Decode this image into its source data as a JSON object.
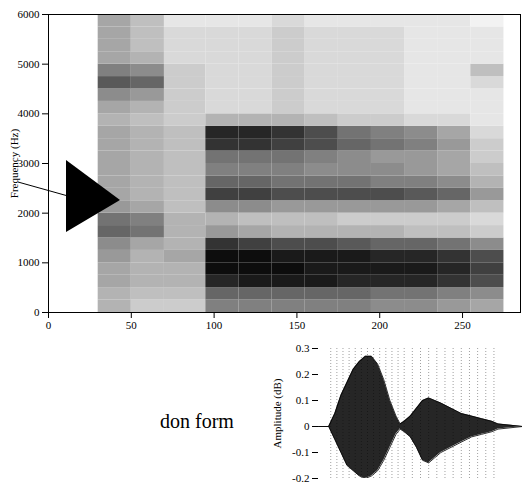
{
  "chart_data": [
    {
      "type": "heatmap",
      "y_label": "Frequency (Hz)",
      "xlim": [
        0,
        285
      ],
      "xticks": [
        0,
        50,
        100,
        150,
        200,
        250
      ],
      "ylim": [
        0,
        6000
      ],
      "yticks": [
        0,
        1000,
        2000,
        3000,
        4000,
        5000,
        6000
      ],
      "time_bins": [
        30,
        50,
        70,
        95,
        115,
        135,
        155,
        175,
        195,
        215,
        235,
        255,
        275
      ],
      "frequency_bins": [
        0,
        250,
        500,
        750,
        1000,
        1250,
        1500,
        1750,
        2000,
        2250,
        2500,
        2750,
        3000,
        3250,
        3500,
        3750,
        4000,
        4250,
        4500,
        4750,
        5000,
        5250,
        5500,
        5750,
        6000
      ],
      "intensity_range": [
        0,
        1
      ],
      "intensity": [
        [
          0.3,
          0.2,
          0.2,
          0.5,
          0.5,
          0.5,
          0.5,
          0.5,
          0.45,
          0.45,
          0.4,
          0.35
        ],
        [
          0.3,
          0.25,
          0.25,
          0.6,
          0.6,
          0.6,
          0.6,
          0.6,
          0.55,
          0.55,
          0.5,
          0.45
        ],
        [
          0.35,
          0.3,
          0.3,
          0.85,
          0.9,
          0.9,
          0.9,
          0.85,
          0.85,
          0.85,
          0.8,
          0.7
        ],
        [
          0.35,
          0.3,
          0.3,
          0.95,
          0.95,
          0.95,
          0.9,
          0.9,
          0.9,
          0.9,
          0.85,
          0.75
        ],
        [
          0.4,
          0.3,
          0.35,
          0.95,
          0.95,
          0.9,
          0.9,
          0.9,
          0.85,
          0.85,
          0.8,
          0.7
        ],
        [
          0.45,
          0.35,
          0.3,
          0.8,
          0.75,
          0.7,
          0.7,
          0.65,
          0.6,
          0.6,
          0.55,
          0.45
        ],
        [
          0.6,
          0.55,
          0.3,
          0.4,
          0.35,
          0.3,
          0.3,
          0.3,
          0.3,
          0.25,
          0.25,
          0.2
        ],
        [
          0.55,
          0.5,
          0.3,
          0.3,
          0.25,
          0.25,
          0.25,
          0.2,
          0.2,
          0.2,
          0.2,
          0.15
        ],
        [
          0.4,
          0.35,
          0.25,
          0.45,
          0.45,
          0.4,
          0.4,
          0.4,
          0.4,
          0.4,
          0.35,
          0.25
        ],
        [
          0.35,
          0.3,
          0.25,
          0.75,
          0.75,
          0.7,
          0.7,
          0.7,
          0.7,
          0.65,
          0.6,
          0.4
        ],
        [
          0.35,
          0.3,
          0.25,
          0.6,
          0.6,
          0.55,
          0.55,
          0.55,
          0.5,
          0.5,
          0.45,
          0.3
        ],
        [
          0.35,
          0.3,
          0.25,
          0.5,
          0.5,
          0.5,
          0.45,
          0.45,
          0.45,
          0.4,
          0.35,
          0.25
        ],
        [
          0.35,
          0.3,
          0.25,
          0.55,
          0.55,
          0.55,
          0.5,
          0.45,
          0.4,
          0.4,
          0.35,
          0.2
        ],
        [
          0.35,
          0.3,
          0.25,
          0.8,
          0.8,
          0.75,
          0.7,
          0.6,
          0.55,
          0.5,
          0.4,
          0.2
        ],
        [
          0.35,
          0.3,
          0.25,
          0.85,
          0.85,
          0.8,
          0.7,
          0.55,
          0.5,
          0.45,
          0.35,
          0.15
        ],
        [
          0.3,
          0.25,
          0.2,
          0.3,
          0.3,
          0.3,
          0.25,
          0.2,
          0.2,
          0.15,
          0.15,
          0.1
        ],
        [
          0.35,
          0.3,
          0.2,
          0.15,
          0.15,
          0.2,
          0.15,
          0.15,
          0.15,
          0.1,
          0.1,
          0.1
        ],
        [
          0.45,
          0.4,
          0.2,
          0.15,
          0.15,
          0.2,
          0.15,
          0.15,
          0.15,
          0.1,
          0.1,
          0.1
        ],
        [
          0.65,
          0.6,
          0.2,
          0.15,
          0.15,
          0.2,
          0.15,
          0.15,
          0.15,
          0.1,
          0.1,
          0.15
        ],
        [
          0.5,
          0.45,
          0.2,
          0.15,
          0.15,
          0.2,
          0.15,
          0.15,
          0.15,
          0.1,
          0.1,
          0.25
        ],
        [
          0.35,
          0.3,
          0.15,
          0.15,
          0.15,
          0.2,
          0.15,
          0.15,
          0.15,
          0.1,
          0.1,
          0.1
        ],
        [
          0.35,
          0.25,
          0.15,
          0.15,
          0.15,
          0.2,
          0.15,
          0.15,
          0.15,
          0.1,
          0.1,
          0.1
        ],
        [
          0.35,
          0.25,
          0.15,
          0.15,
          0.15,
          0.2,
          0.15,
          0.15,
          0.15,
          0.1,
          0.1,
          0.1
        ],
        [
          0.35,
          0.25,
          0.1,
          0.1,
          0.1,
          0.15,
          0.1,
          0.1,
          0.1,
          0.1,
          0.1,
          0.05
        ]
      ]
    },
    {
      "type": "area",
      "y_label": "Amplitude (dB)",
      "annotations": [
        "don form"
      ],
      "tick_labels": "y",
      "color": "#000000",
      "xlim": [
        0,
        100
      ],
      "ylim": [
        -0.2,
        0.3
      ],
      "yticks": [
        -0.2,
        -0.1,
        0,
        0.1,
        0.2,
        0.3
      ],
      "x": [
        0,
        5,
        8,
        11,
        14,
        17,
        20,
        23,
        26,
        29,
        32,
        35,
        38,
        40,
        42,
        45,
        48,
        51,
        54,
        57,
        60,
        65,
        70,
        75,
        80,
        85,
        88,
        100
      ],
      "upper": [
        0,
        0,
        0.05,
        0.12,
        0.17,
        0.22,
        0.25,
        0.27,
        0.27,
        0.24,
        0.18,
        0.1,
        0.04,
        0.01,
        0.02,
        0.04,
        0.07,
        0.1,
        0.11,
        0.1,
        0.09,
        0.07,
        0.05,
        0.04,
        0.03,
        0.02,
        0.01,
        0
      ],
      "lower": [
        0,
        0,
        -0.05,
        -0.1,
        -0.15,
        -0.17,
        -0.19,
        -0.2,
        -0.19,
        -0.17,
        -0.13,
        -0.08,
        -0.03,
        -0.01,
        -0.02,
        -0.04,
        -0.08,
        -0.13,
        -0.14,
        -0.12,
        -0.1,
        -0.08,
        -0.06,
        -0.04,
        -0.03,
        -0.02,
        -0.01,
        0
      ],
      "pitch_marks": [
        6,
        9,
        12,
        15,
        18,
        21,
        24,
        27,
        30,
        33,
        36,
        39,
        42,
        46,
        50,
        54,
        58,
        62,
        66,
        70,
        74,
        78,
        82,
        86
      ]
    }
  ]
}
